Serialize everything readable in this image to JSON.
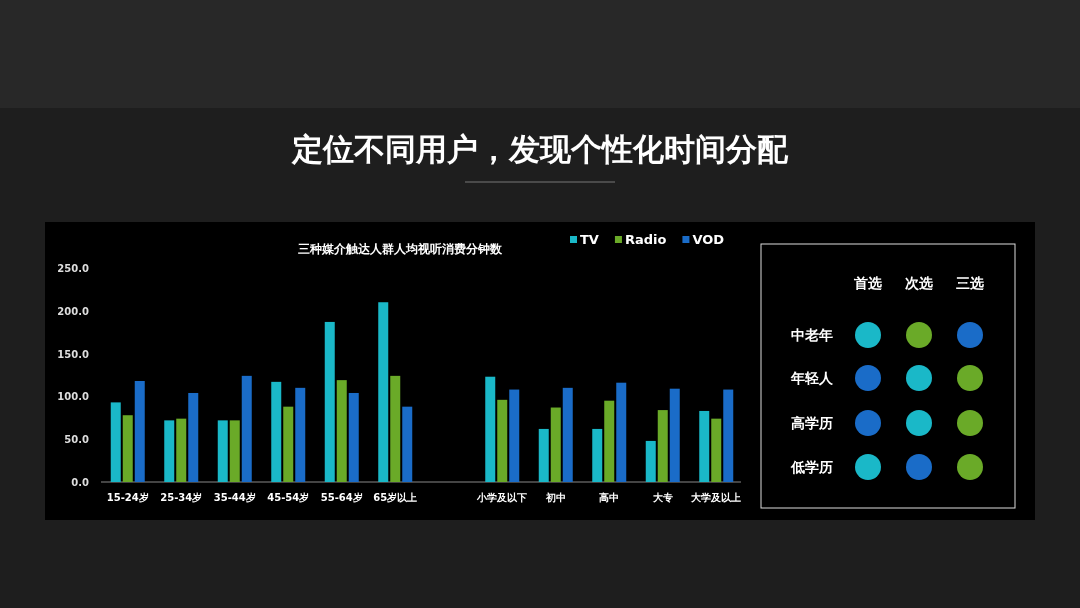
{
  "chart_data": [
    {
      "type": "bar",
      "title": "三种媒介触达人群人均视听消费分钟数",
      "annotations": [
        "定位不同用户，发现个性化时间分配"
      ],
      "categories": [
        "15-24岁",
        "25-34岁",
        "35-44岁",
        "45-54岁",
        "55-64岁",
        "65岁以上",
        null,
        "小学及以下",
        "初中",
        "高中",
        "大专",
        "大学及以上"
      ],
      "series": [
        {
          "name": "TV",
          "color": "#1ab8c8",
          "values": [
            93,
            72,
            72,
            117,
            187,
            210,
            null,
            123,
            62,
            62,
            48,
            83
          ]
        },
        {
          "name": "Radio",
          "color": "#6aaa28",
          "values": [
            78,
            74,
            72,
            88,
            119,
            124,
            null,
            96,
            87,
            95,
            84,
            74
          ]
        },
        {
          "name": "VOD",
          "color": "#1a6cc8",
          "values": [
            118,
            104,
            124,
            110,
            104,
            88,
            null,
            108,
            110,
            116,
            109,
            108
          ]
        }
      ],
      "ylim": [
        0,
        250
      ],
      "yticks": [
        {
          "value": 0,
          "label": "0.0"
        },
        {
          "value": 50,
          "label": "50.0"
        },
        {
          "value": 100,
          "label": "100.0"
        },
        {
          "value": 150,
          "label": "150.0"
        },
        {
          "value": 200,
          "label": "200.0"
        },
        {
          "value": 250,
          "label": "250.0"
        }
      ],
      "grid": false,
      "legend": "top right"
    },
    {
      "type": "other",
      "categories": [
        "首选",
        "次选",
        "三选"
      ],
      "y_categories": [
        "中老年",
        "年轻人",
        "高学历",
        "低学历"
      ],
      "colors": [
        [
          "#1ab8c8",
          "#6aaa28",
          "#1a6cc8"
        ],
        [
          "#1a6cc8",
          "#1ab8c8",
          "#6aaa28"
        ],
        [
          "#1a6cc8",
          "#1ab8c8",
          "#6aaa28"
        ],
        [
          "#1ab8c8",
          "#1a6cc8",
          "#6aaa28"
        ]
      ]
    }
  ]
}
